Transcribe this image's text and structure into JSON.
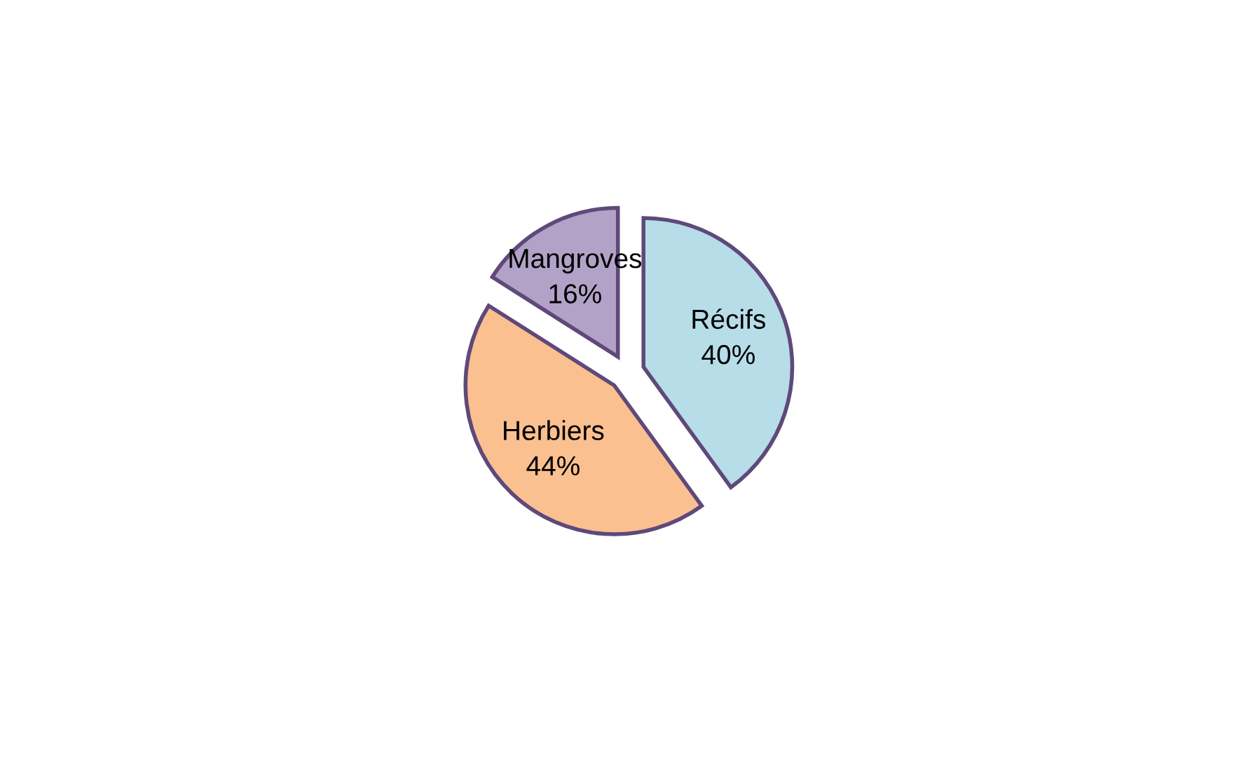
{
  "chart_data": {
    "type": "pie",
    "categories": [
      "Récifs",
      "Herbiers",
      "Mangroves"
    ],
    "values": [
      40,
      44,
      16
    ],
    "colors": [
      "#b7dde8",
      "#fac090",
      "#b3a2c7"
    ],
    "value_labels": [
      "40%",
      "44%",
      "16%"
    ],
    "legend": false
  }
}
